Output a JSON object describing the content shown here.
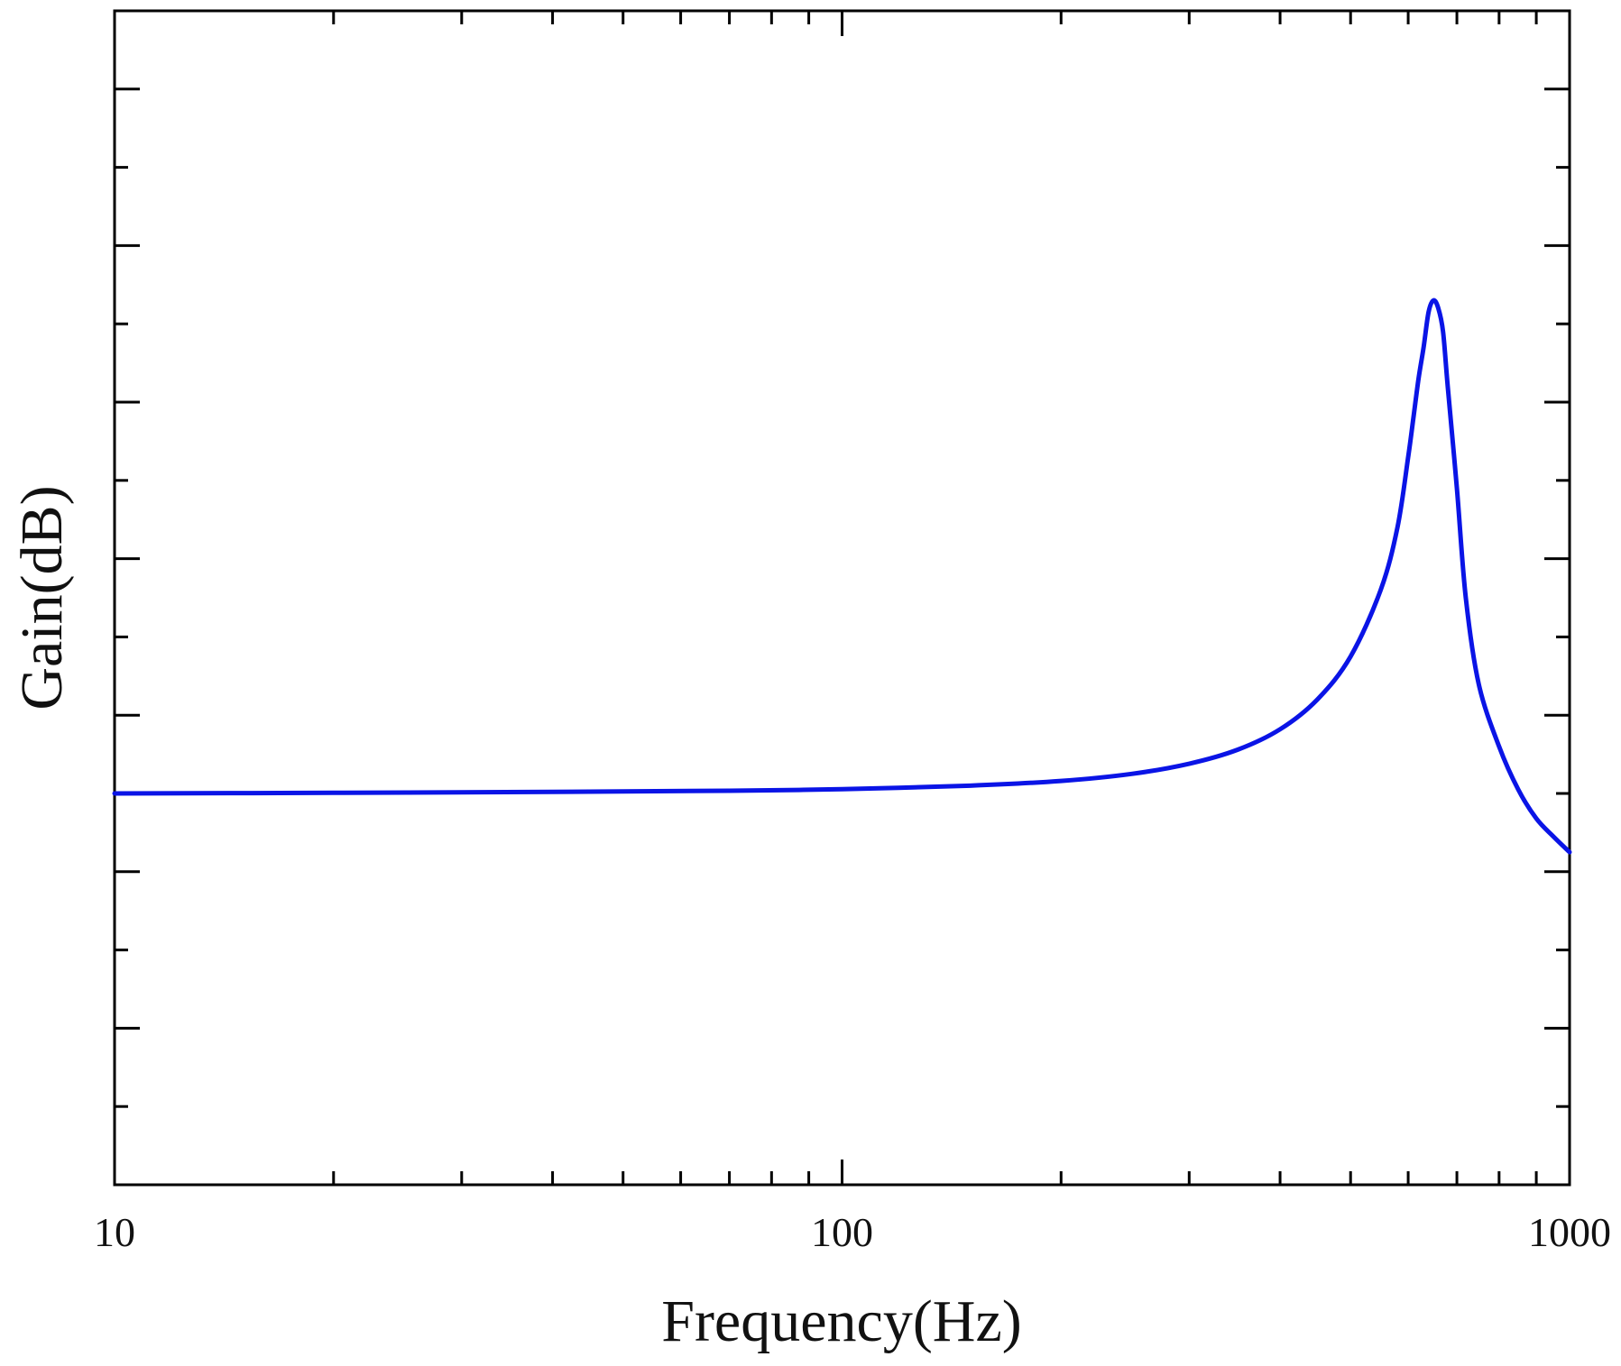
{
  "chart_data": {
    "type": "line",
    "title": "",
    "xlabel": "Frequency(Hz)",
    "ylabel": "Gain(dB)",
    "x_scale": "log",
    "xlim": [
      10,
      1000
    ],
    "x_ticks": [
      10,
      100,
      1000
    ],
    "x_tick_labels": [
      "10",
      "100",
      "1000"
    ],
    "y_ticks_labeled": false,
    "y_major_tick_count": 7,
    "grid": false,
    "legend": "none",
    "series": [
      {
        "color": "#0a14e6",
        "x": [
          10,
          20,
          40,
          70,
          100,
          150,
          200,
          250,
          300,
          350,
          400,
          450,
          500,
          550,
          580,
          600,
          610,
          620,
          630,
          640,
          650,
          660,
          670,
          680,
          700,
          720,
          750,
          800,
          850,
          900,
          950,
          1000
        ],
        "y": [
          0.0,
          0.008,
          0.02,
          0.035,
          0.055,
          0.1,
          0.16,
          0.25,
          0.38,
          0.56,
          0.82,
          1.2,
          1.75,
          2.6,
          3.4,
          4.3,
          4.8,
          5.3,
          5.7,
          6.15,
          6.3,
          6.2,
          5.9,
          5.2,
          3.9,
          2.5,
          1.4,
          0.6,
          0.05,
          -0.32,
          -0.55,
          -0.75
        ]
      }
    ],
    "ylim": [
      -5,
      10
    ]
  }
}
